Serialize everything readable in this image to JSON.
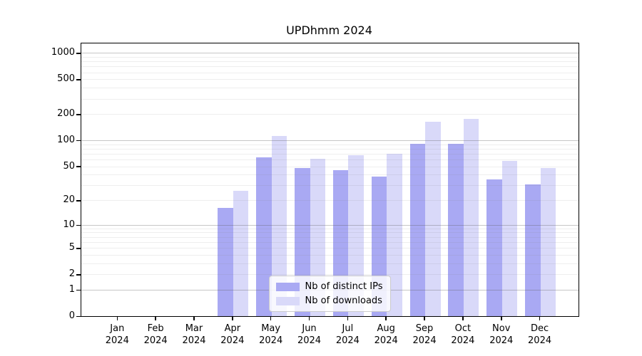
{
  "title": "UPDhmm 2024",
  "chart_data": {
    "type": "bar",
    "title": "UPDhmm 2024",
    "categories": [
      "Jan",
      "Feb",
      "Mar",
      "Apr",
      "May",
      "Jun",
      "Jul",
      "Aug",
      "Sep",
      "Oct",
      "Nov",
      "Dec"
    ],
    "x_year_label": "2024",
    "series": [
      {
        "name": "Nb of distinct IPs",
        "color": "#a9a9f3",
        "values": [
          0,
          0,
          0,
          16,
          64,
          48,
          45,
          38,
          91,
          91,
          35,
          31
        ]
      },
      {
        "name": "Nb of downloads",
        "color": "#d9d9f9",
        "values": [
          0,
          0,
          0,
          26,
          113,
          61,
          67,
          70,
          164,
          175,
          58,
          48
        ]
      }
    ],
    "xlabel": "",
    "ylabel": "",
    "y_ticks": [
      0,
      1,
      2,
      5,
      10,
      20,
      50,
      100,
      200,
      500,
      1000
    ],
    "scale": "log10(value+1)",
    "ylim": [
      0,
      1284
    ],
    "grid": "horizontal major+minor",
    "legend_position": "lower center",
    "colors": {
      "bar_distinct_ips": "#a9a9f3",
      "bar_downloads": "#d9d9f9",
      "major_grid": "#c6c6c6",
      "minor_grid": "#ececec",
      "spine": "#000000",
      "text": "#000000",
      "legend_background": "#ffffff",
      "legend_border": "#cccccc"
    }
  }
}
